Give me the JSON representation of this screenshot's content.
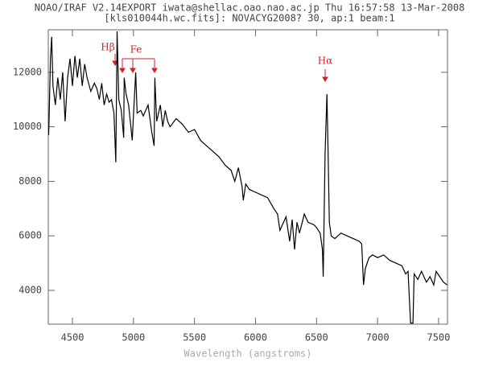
{
  "chart_data": {
    "type": "line",
    "title": "NOAO/IRAF V2.14EXPORT iwata@shellac.oao.nao.ac.jp Thu 16:57:58 13-Mar-2008",
    "subtitle": "[kls010044h.wc.fits]: NOVACYG2008? 30, ap:1 beam:1",
    "x_label": "Wavelength (angstroms)",
    "annotations": [
      "Hβ",
      "Fe",
      "Hα"
    ],
    "color": "#000000",
    "xlim": [
      4302,
      7573
    ],
    "ylim": [
      2760,
      13560
    ],
    "xticks": [
      4500,
      5000,
      5500,
      6000,
      6500,
      7000,
      7500
    ],
    "yticks": [
      4000,
      6000,
      8000,
      10000,
      12000
    ],
    "x": [
      4305,
      4320,
      4330,
      4340,
      4360,
      4380,
      4400,
      4420,
      4440,
      4460,
      4480,
      4500,
      4520,
      4540,
      4560,
      4580,
      4600,
      4620,
      4650,
      4680,
      4700,
      4720,
      4740,
      4760,
      4780,
      4800,
      4820,
      4840,
      4855,
      4866,
      4880,
      4900,
      4920,
      4924,
      4940,
      4960,
      4990,
      5000,
      5018,
      5030,
      5060,
      5080,
      5120,
      5150,
      5169,
      5175,
      5190,
      5220,
      5240,
      5260,
      5280,
      5300,
      5350,
      5400,
      5450,
      5500,
      5550,
      5600,
      5650,
      5700,
      5750,
      5800,
      5830,
      5860,
      5890,
      5900,
      5920,
      5950,
      6000,
      6050,
      6100,
      6150,
      6180,
      6200,
      6250,
      6280,
      6300,
      6320,
      6340,
      6360,
      6400,
      6430,
      6480,
      6500,
      6530,
      6548,
      6555,
      6570,
      6585,
      6595,
      6605,
      6620,
      6650,
      6700,
      6750,
      6800,
      6850,
      6870,
      6885,
      6900,
      6930,
      6960,
      7000,
      7050,
      7100,
      7150,
      7200,
      7230,
      7250,
      7270,
      7290,
      7300,
      7330,
      7360,
      7400,
      7430,
      7460,
      7480,
      7510,
      7540,
      7570
    ],
    "values": [
      9700,
      12500,
      13300,
      11500,
      10800,
      11800,
      11000,
      12000,
      10200,
      11800,
      12500,
      11500,
      12600,
      11800,
      12500,
      11500,
      12300,
      11800,
      11300,
      11600,
      11400,
      11000,
      11600,
      10800,
      11200,
      10900,
      11000,
      10500,
      8700,
      13500,
      11000,
      10600,
      9600,
      11800,
      11200,
      10800,
      9500,
      10400,
      12000,
      10500,
      10600,
      10400,
      10800,
      9800,
      9300,
      11800,
      10200,
      10800,
      10000,
      10600,
      10200,
      10000,
      10300,
      10100,
      9800,
      9900,
      9500,
      9300,
      9100,
      8900,
      8600,
      8400,
      8000,
      8500,
      7800,
      7300,
      7900,
      7700,
      7600,
      7500,
      7400,
      7000,
      6800,
      6200,
      6700,
      5800,
      6600,
      5500,
      6500,
      6100,
      6800,
      6500,
      6400,
      6300,
      6100,
      5500,
      4500,
      9000,
      11200,
      9000,
      6500,
      6000,
      5900,
      6100,
      6000,
      5900,
      5800,
      5700,
      4200,
      4800,
      5200,
      5300,
      5200,
      5300,
      5100,
      5000,
      4900,
      4600,
      4700,
      2800,
      2800,
      4600,
      4400,
      4700,
      4300,
      4500,
      4200,
      4700,
      4500,
      4300,
      4200
    ]
  }
}
